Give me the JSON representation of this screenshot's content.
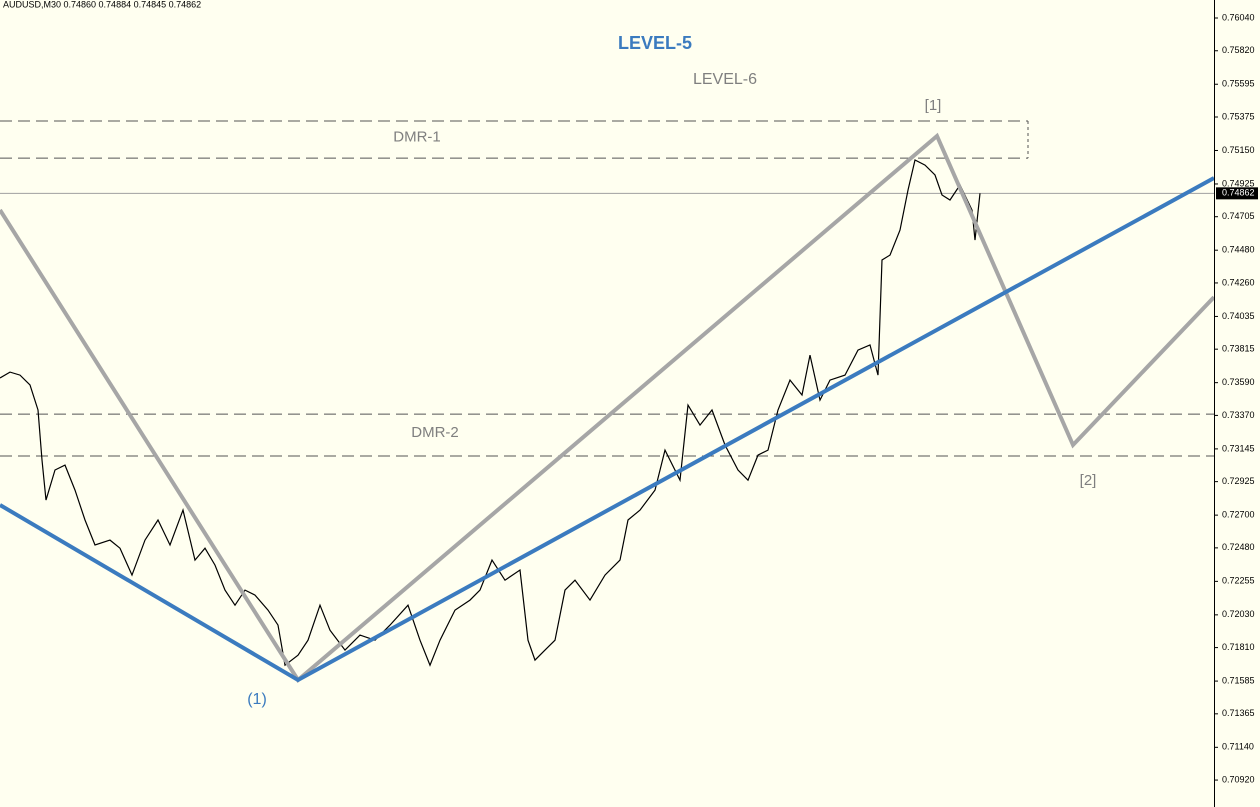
{
  "chart_data": {
    "type": "line",
    "header": "AUDUSD,M30  0.74860 0.74884 0.74845 0.74862",
    "color": "#000000",
    "x": [
      0,
      10,
      20,
      30,
      38,
      42,
      46,
      55,
      65,
      75,
      85,
      95,
      110,
      120,
      132,
      145,
      158,
      170,
      183,
      195,
      205,
      215,
      225,
      235,
      245,
      255,
      268,
      278,
      285,
      298,
      308,
      320,
      330,
      345,
      360,
      375,
      390,
      408,
      420,
      430,
      440,
      455,
      470,
      480,
      492,
      505,
      520,
      528,
      535,
      545,
      555,
      565,
      575,
      590,
      605,
      620,
      628,
      640,
      655,
      665,
      680,
      688,
      700,
      712,
      725,
      738,
      748,
      758,
      768,
      778,
      790,
      802,
      810,
      820,
      830,
      845,
      858,
      870,
      878,
      882,
      890,
      900,
      908,
      915,
      925,
      935,
      942,
      950,
      960,
      972,
      975,
      980
    ],
    "values": [
      0.73621,
      0.73661,
      0.73641,
      0.73574,
      0.73406,
      0.7307,
      0.72801,
      0.73003,
      0.73036,
      0.72868,
      0.72667,
      0.72499,
      0.72532,
      0.72478,
      0.72297,
      0.72532,
      0.72667,
      0.72499,
      0.72734,
      0.72398,
      0.72478,
      0.72364,
      0.72196,
      0.72095,
      0.72196,
      0.72163,
      0.72062,
      0.71961,
      0.71692,
      0.71759,
      0.7186,
      0.72095,
      0.71927,
      0.71793,
      0.71894,
      0.7186,
      0.71961,
      0.72095,
      0.7186,
      0.71692,
      0.7186,
      0.72062,
      0.72129,
      0.72196,
      0.72398,
      0.72263,
      0.72331,
      0.7186,
      0.71726,
      0.71793,
      0.7186,
      0.72196,
      0.72263,
      0.72129,
      0.72297,
      0.72398,
      0.72667,
      0.72734,
      0.72868,
      0.73137,
      0.72935,
      0.73439,
      0.73305,
      0.73406,
      0.73171,
      0.73003,
      0.72935,
      0.73103,
      0.73137,
      0.73406,
      0.73607,
      0.73507,
      0.73775,
      0.73473,
      0.73607,
      0.73641,
      0.73809,
      0.73843,
      0.73641,
      0.74414,
      0.74447,
      0.74615,
      0.74884,
      0.75086,
      0.75052,
      0.74985,
      0.74851,
      0.74817,
      0.74918,
      0.7475,
      0.74548,
      0.74862
    ],
    "xlim": [
      0,
      1214
    ],
    "ylim": [
      0.70739,
      0.76161
    ],
    "yticks": [
      {
        "value": 0.7604,
        "label": "0.76040"
      },
      {
        "value": 0.7582,
        "label": "0.75820"
      },
      0.75595,
      0.75375,
      {
        "value": 0.7515,
        "label": "0.75150"
      },
      0.74925,
      0.74705,
      {
        "value": 0.7448,
        "label": "0.74480"
      },
      {
        "value": 0.7426,
        "label": "0.74260"
      },
      0.74035,
      0.73815,
      {
        "value": 0.7359,
        "label": "0.73590"
      },
      {
        "value": 0.7337,
        "label": "0.73370"
      },
      0.73145,
      0.72925,
      {
        "value": 0.727,
        "label": "0.72700"
      },
      {
        "value": 0.7248,
        "label": "0.72480"
      },
      0.72255,
      {
        "value": 0.7203,
        "label": "0.72030"
      },
      {
        "value": 0.7181,
        "label": "0.71810"
      },
      0.71585,
      0.71365,
      {
        "value": 0.7114,
        "label": "0.71140"
      },
      {
        "value": 0.7092,
        "label": "0.70920"
      }
    ],
    "current_price": 0.74862,
    "lines": [
      {
        "color": "#a6a6a6",
        "x": [
          0,
          298,
          937,
          1073,
          1214
        ],
        "values": [
          0.7475,
          0.71592,
          0.75247,
          0.73171,
          0.74165
        ]
      },
      {
        "color": "#3b7bbf",
        "x": [
          0,
          298,
          1214
        ],
        "values": [
          0.72768,
          0.71592,
          0.74965
        ]
      }
    ],
    "zones": [
      {
        "label": "DMR-1",
        "range": [
          0.75348,
          0.75099
        ],
        "x_end": 1028
      },
      {
        "label": "DMR-2",
        "range": [
          0.73379,
          0.73097
        ]
      }
    ],
    "annotations": [
      {
        "text": "LEVEL-5",
        "color": "#3b7bbf"
      },
      {
        "text": "LEVEL-6",
        "color": "#7f7f7f"
      },
      {
        "text": "[1]",
        "color": "#7f7f7f"
      },
      {
        "text": "(1)",
        "color": "#3b7bbf"
      },
      {
        "text": "[2]",
        "color": "#7f7f7f"
      }
    ]
  }
}
